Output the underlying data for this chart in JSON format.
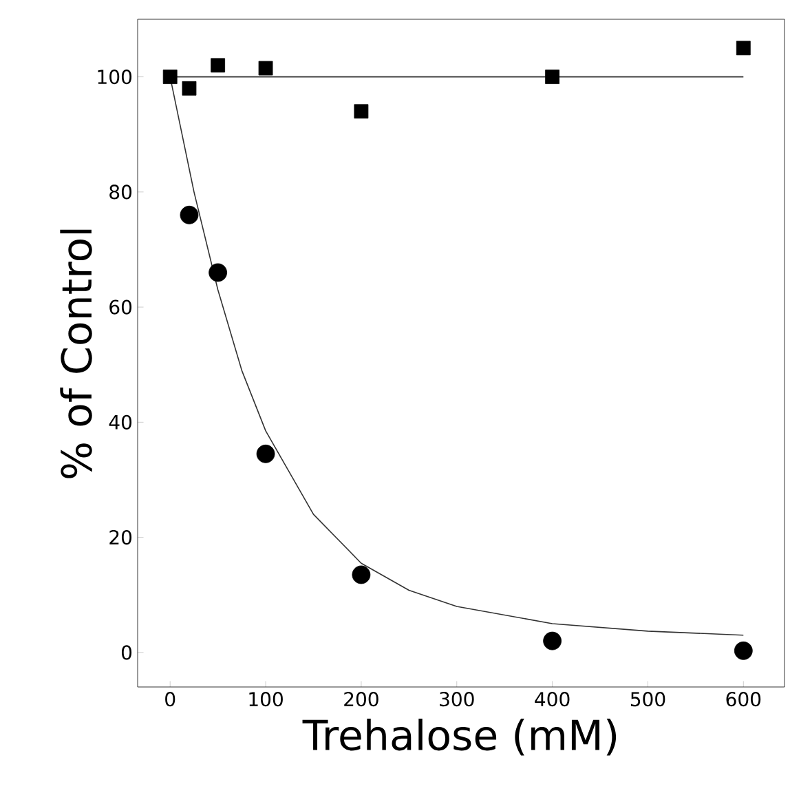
{
  "chart_data": {
    "type": "scatter",
    "xlabel": "Trehalose (mM)",
    "ylabel": "% of Control",
    "xlim": [
      -34,
      643
    ],
    "ylim": [
      -6,
      110
    ],
    "xticks": [
      0,
      100,
      200,
      300,
      400,
      500,
      600
    ],
    "yticks": [
      0,
      20,
      40,
      60,
      80,
      100
    ],
    "grid": false,
    "series": [
      {
        "marker": "square",
        "color": "#000000",
        "x": [
          0,
          20,
          50,
          100,
          200,
          400,
          600
        ],
        "values": [
          100,
          98,
          102,
          101.5,
          94,
          100,
          105
        ]
      },
      {
        "marker": "circle",
        "color": "#000000",
        "x": [
          20,
          50,
          100,
          200,
          400,
          600
        ],
        "values": [
          76,
          66,
          34.5,
          13.5,
          2,
          0.3
        ]
      },
      {
        "type": "line",
        "marker": "none",
        "color": "#333333",
        "x": [
          0,
          600
        ],
        "values": [
          100,
          100
        ]
      },
      {
        "type": "line",
        "marker": "none",
        "color": "#333333",
        "x": [
          0,
          25,
          50,
          75,
          100,
          150,
          200,
          250,
          300,
          400,
          500,
          600
        ],
        "values": [
          100,
          80,
          63,
          49,
          38.5,
          24,
          15.5,
          10.8,
          8,
          5,
          3.7,
          3
        ]
      }
    ]
  }
}
